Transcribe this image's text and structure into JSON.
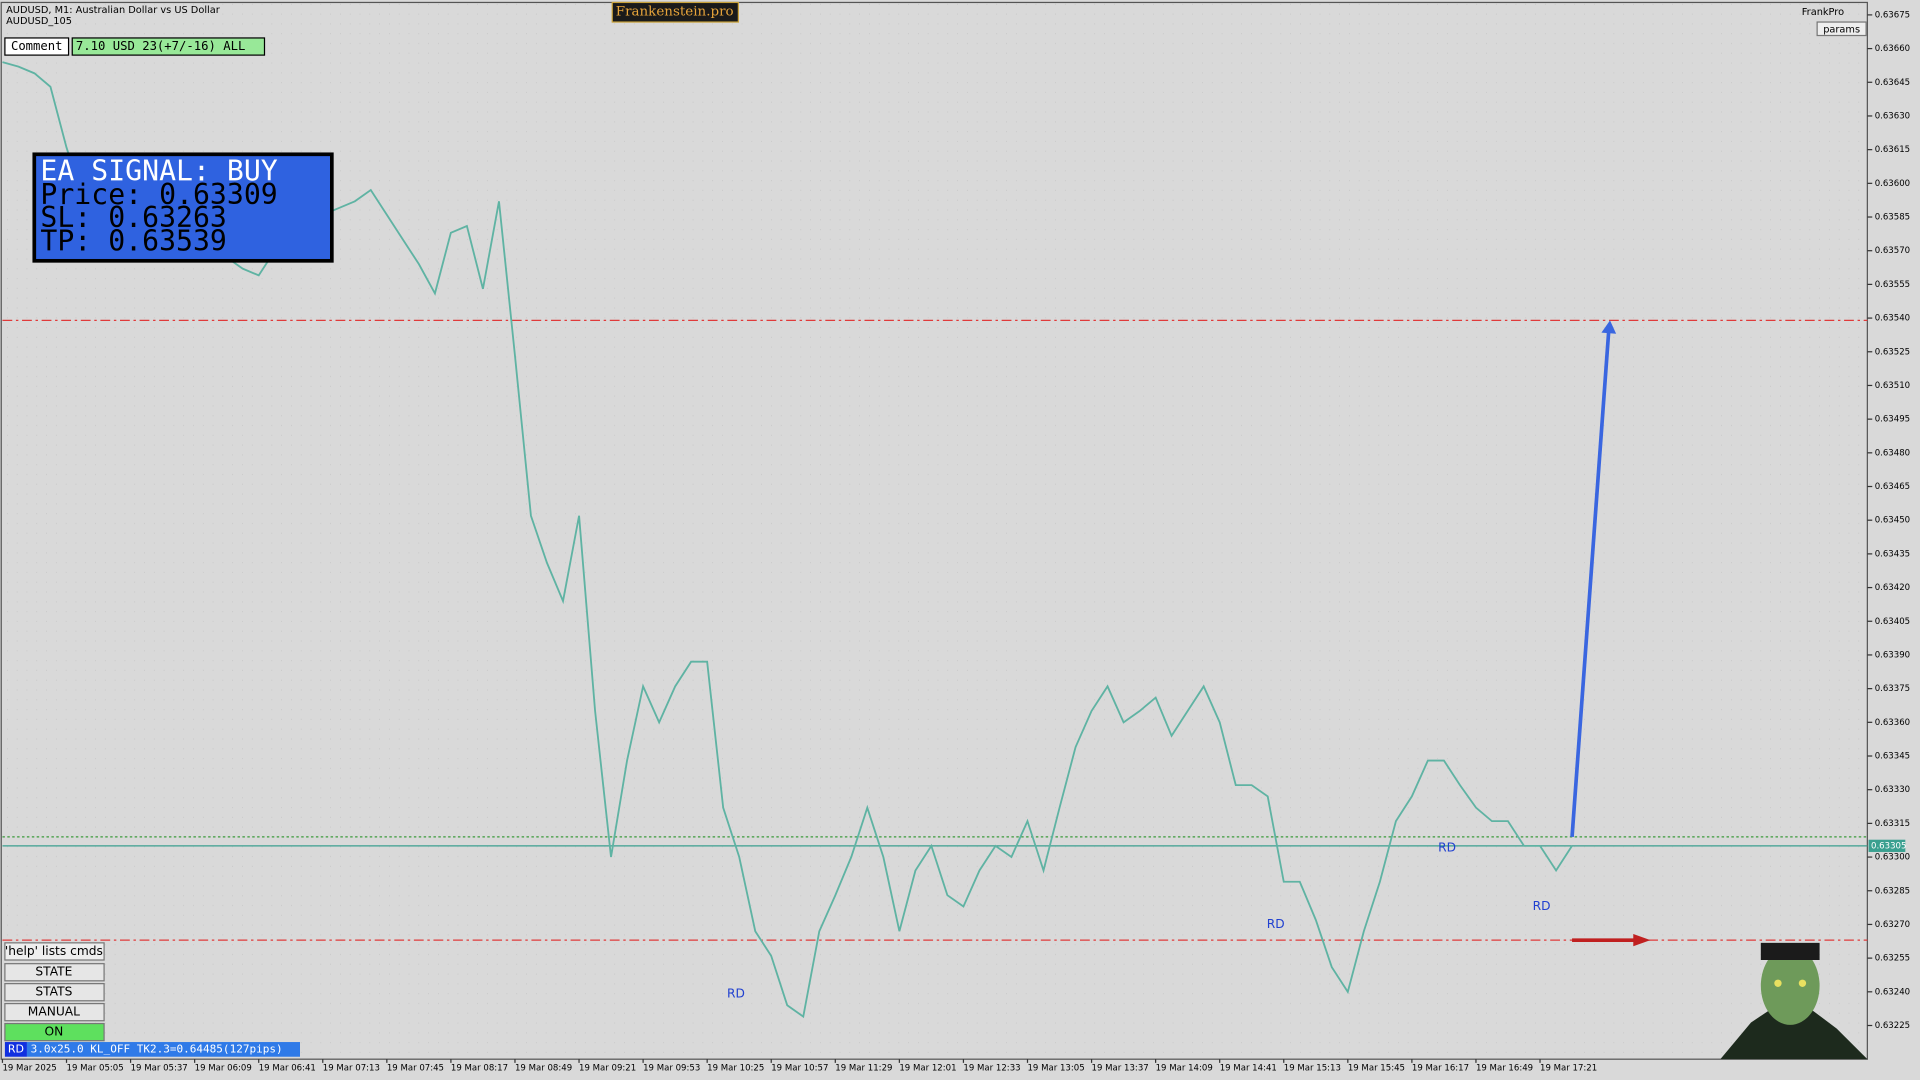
{
  "window": {
    "symbol": "AUDUSD, M1:  Australian Dollar vs US Dollar",
    "subtitle": "AUDUSD_105",
    "brand": "Frankenstein.pro",
    "account": "FrankPro",
    "params": "params",
    "comment_label": "Comment",
    "comment_value": "7.10 USD 23(+7/-16) ALL"
  },
  "signal": {
    "title": "EA SIGNAL: BUY",
    "price": "Price: 0.63309",
    "sl": "SL:     0.63263",
    "tp": "TP:     0.63539"
  },
  "buttons": {
    "help": "'help' lists cmds",
    "items": [
      "STATE",
      "STATS",
      "MANUAL",
      "ON"
    ]
  },
  "status": {
    "tag": "RD",
    "text": "3.0x25.0 KL_OFF TK2.3=0.64485(127pips)"
  },
  "chart_data": {
    "type": "line",
    "color": "#5fb3a3",
    "grid": true,
    "categories": [
      "19 Mar 2025",
      null,
      null,
      null,
      "19 Mar 05:05",
      null,
      null,
      null,
      "19 Mar 05:37",
      null,
      null,
      null,
      "19 Mar 06:09",
      null,
      null,
      null,
      "19 Mar 06:41",
      null,
      null,
      null,
      "19 Mar 07:13",
      null,
      null,
      null,
      "19 Mar 07:45",
      null,
      null,
      null,
      "19 Mar 08:17",
      null,
      null,
      null,
      "19 Mar 08:49",
      null,
      null,
      null,
      "19 Mar 09:21",
      null,
      null,
      null,
      "19 Mar 09:53",
      null,
      null,
      null,
      "19 Mar 10:25",
      null,
      null,
      null,
      "19 Mar 10:57",
      null,
      null,
      null,
      "19 Mar 11:29",
      null,
      null,
      null,
      "19 Mar 12:01",
      null,
      null,
      null,
      "19 Mar 12:33",
      null,
      null,
      null,
      "19 Mar 13:05",
      null,
      null,
      null,
      "19 Mar 13:37",
      null,
      null,
      null,
      "19 Mar 14:09",
      null,
      null,
      null,
      "19 Mar 14:41",
      null,
      null,
      null,
      "19 Mar 15:13",
      null,
      null,
      null,
      "19 Mar 15:45",
      null,
      null,
      null,
      "19 Mar 16:17",
      null,
      null,
      null,
      "19 Mar 16:49",
      null,
      null,
      null,
      "19 Mar 17:21",
      null,
      null,
      null,
      null,
      null,
      null,
      null,
      null,
      null,
      null,
      null,
      null,
      null,
      null,
      null,
      null,
      null,
      null,
      null
    ],
    "values": [
      0.63654,
      0.63652,
      0.63649,
      0.63643,
      0.63616,
      0.63594,
      0.63589,
      0.63586,
      0.63583,
      0.63581,
      0.63578,
      0.63575,
      0.63572,
      0.6357,
      0.63567,
      0.63562,
      0.63559,
      0.6357,
      0.63583,
      0.63592,
      0.63586,
      0.63589,
      0.63592,
      0.63597,
      0.63586,
      0.63575,
      0.63564,
      0.63551,
      0.63578,
      0.63581,
      0.63553,
      0.63592,
      0.63523,
      0.63452,
      0.63431,
      0.63414,
      0.63452,
      0.63365,
      0.633,
      0.63343,
      0.63376,
      0.6336,
      0.63376,
      0.63387,
      0.63387,
      0.63322,
      0.633,
      0.63267,
      0.63256,
      0.63234,
      0.63229,
      0.63267,
      0.63283,
      0.633,
      0.63322,
      0.633,
      0.63267,
      0.63294,
      0.63305,
      0.63283,
      0.63278,
      0.63294,
      0.63305,
      0.633,
      0.63316,
      0.63294,
      0.63322,
      0.63349,
      0.63365,
      0.63376,
      0.6336,
      0.63365,
      0.63371,
      0.63354,
      0.63365,
      0.63376,
      0.6336,
      0.63332,
      0.63332,
      0.63327,
      0.63289,
      0.63289,
      0.63272,
      0.63251,
      0.6324,
      0.63267,
      0.63289,
      0.63316,
      0.63327,
      0.63343,
      0.63343,
      0.63332,
      0.63322,
      0.63316,
      0.63316,
      0.63305,
      0.63305,
      0.63294,
      0.63305,
      null,
      null,
      null,
      null,
      null,
      null,
      null,
      null,
      null,
      null,
      null,
      null,
      null,
      null,
      null,
      null,
      null
    ],
    "ylim": [
      0.6321,
      0.6368
    ],
    "yticks": [
      0.63225,
      {
        "value": 0.6324,
        "label": "0.63240"
      },
      0.63255,
      {
        "value": 0.6327,
        "label": "0.63270"
      },
      0.63285,
      {
        "value": 0.633,
        "label": "0.63300"
      },
      0.63315,
      {
        "value": 0.6333,
        "label": "0.63330"
      },
      0.63345,
      {
        "value": 0.6336,
        "label": "0.63360"
      },
      0.63375,
      {
        "value": 0.6339,
        "label": "0.63390"
      },
      0.63405,
      {
        "value": 0.6342,
        "label": "0.63420"
      },
      0.63435,
      {
        "value": 0.6345,
        "label": "0.63450"
      },
      0.63465,
      {
        "value": 0.6348,
        "label": "0.63480"
      },
      0.63495,
      {
        "value": 0.6351,
        "label": "0.63510"
      },
      0.63525,
      {
        "value": 0.6354,
        "label": "0.63540"
      },
      0.63555,
      {
        "value": 0.6357,
        "label": "0.63570"
      },
      0.63585,
      {
        "value": 0.636,
        "label": "0.63600"
      },
      0.63615,
      {
        "value": 0.6363,
        "label": "0.63630"
      },
      0.63645,
      {
        "value": 0.6366,
        "label": "0.63660"
      },
      0.63675
    ],
    "levels": [
      {
        "value": 0.63539,
        "color": "#e03a3a"
      },
      {
        "value": 0.63263,
        "color": "#e03a3a"
      },
      {
        "value": 0.63309,
        "color": "#3a9a3a"
      }
    ],
    "current_price": 0.63305,
    "annotations": [
      {
        "text": "RD",
        "x": 45.8,
        "y": 0.63239
      },
      {
        "text": "RD",
        "x": 79.5,
        "y": 0.6327
      },
      {
        "text": "RD",
        "x": 90.2,
        "y": 0.63304
      },
      {
        "text": "RD",
        "x": 96.1,
        "y": 0.63278
      }
    ]
  }
}
